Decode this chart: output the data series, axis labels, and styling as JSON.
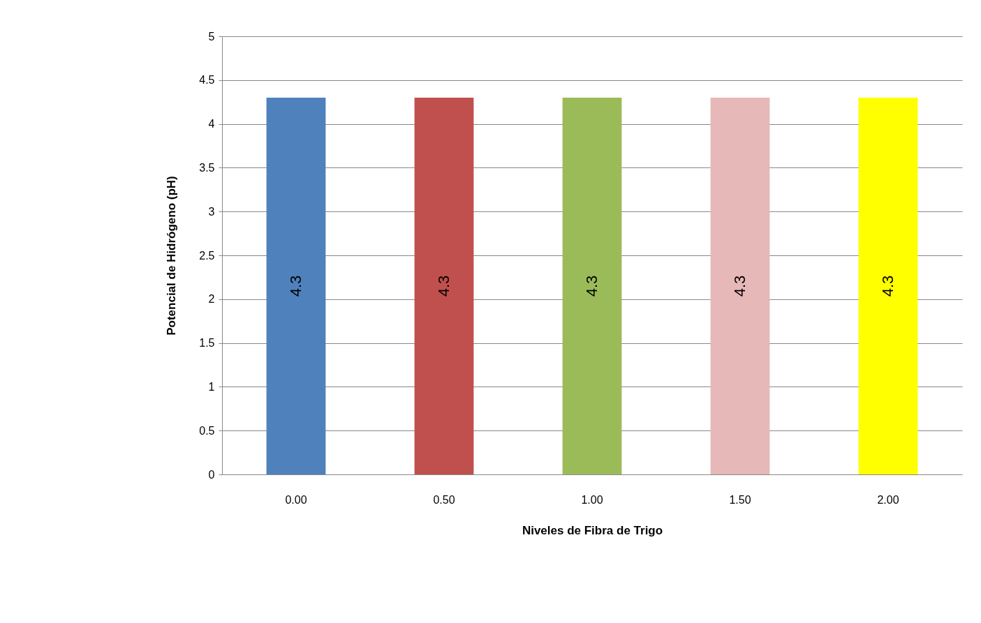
{
  "chart_data": {
    "type": "bar",
    "xlabel": "Niveles de Fibra de Trigo",
    "ylabel": "Potencial de Hidrógeno (pH)",
    "categories": [
      "0.00",
      "0.50",
      "1.00",
      "1.50",
      "2.00"
    ],
    "values": [
      4.3,
      4.3,
      4.3,
      4.3,
      4.3
    ],
    "colors": [
      "#4f81bd",
      "#c0504d",
      "#9bbb59",
      "#e6b8b7",
      "#ffff00"
    ],
    "ylim": [
      0,
      5
    ],
    "yticks": [
      0,
      0.5,
      1,
      1.5,
      2,
      2.5,
      3,
      3.5,
      4,
      4.5,
      5
    ],
    "grid": "y",
    "data_labels": true
  }
}
